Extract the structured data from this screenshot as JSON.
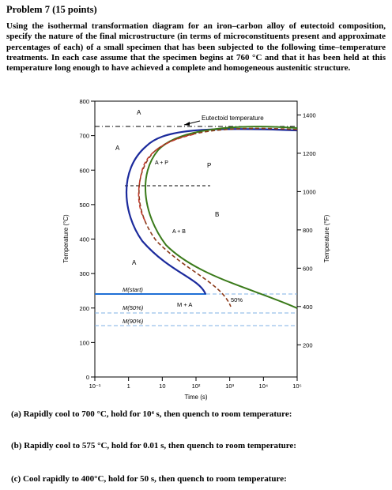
{
  "problem": {
    "title": "Problem 7 (15 points)",
    "statement": "Using the isothermal transformation diagram for an iron–carbon alloy of eutectoid composition, specify the nature of the final microstructure (in terms of microconstituents present and approximate percentages of each) of a small specimen that has been subjected to the following time–temperature treatments. In each case assume that the specimen begins at 760 °C and that it has been held at this temperature long enough to have achieved a complete and homogeneous austenitic structure."
  },
  "chart_data": {
    "type": "line",
    "xlabel": "Time (s)",
    "ylabel_left": "Temperature (°C)",
    "ylabel_right": "Temperature (°F)",
    "x_scale": "log",
    "xlim": [
      0.1,
      100000
    ],
    "ylim": [
      0,
      800
    ],
    "x_ticks": [
      "10⁻¹",
      "1",
      "10",
      "10²",
      "10³",
      "10⁴",
      "10⁵"
    ],
    "y_ticks_left": [
      "0",
      "100",
      "200",
      "300",
      "400",
      "500",
      "600",
      "700",
      "800"
    ],
    "y_ticks_right": [
      "200",
      "400",
      "600",
      "800",
      "1000",
      "1200",
      "1400"
    ],
    "eutectoid_temperature_c": 727,
    "martensite_lines_c": {
      "start": 220,
      "50%": 165,
      "90%": 130
    },
    "series": [
      {
        "name": "",
        "color": "#1b2a9c",
        "x": [
          100,
          10,
          3,
          1.6,
          1.5,
          2.0,
          3.5,
          8,
          20,
          60,
          100
        ],
        "y": [
          700,
          700,
          640,
          580,
          540,
          480,
          420,
          360,
          300,
          240,
          220
        ]
      },
      {
        "name": "",
        "color": "#3a7a1a",
        "x": [
          2000,
          80,
          15,
          6,
          4,
          5,
          10,
          40,
          200,
          2000,
          20000,
          90000
        ],
        "y": [
          710,
          705,
          650,
          590,
          540,
          470,
          410,
          350,
          300,
          250,
          210,
          190
        ]
      }
    ],
    "annotations": [
      "Eutectoid temperature",
      "A",
      "A",
      "P",
      "B",
      "A",
      "A + P",
      "A + B",
      "M(start)",
      "M + A",
      "50%",
      "M(50%)",
      "M(90%)"
    ]
  },
  "questions": [
    "(a) Rapidly cool to 700 °C, hold for 10⁴ s, then quench to room temperature:",
    "(b) Rapidly cool to 575 °C, hold for 0.01 s, then quench to room temperature:",
    "(c) Cool rapidly to 400°C, hold for 50 s, then quench to room temperature:"
  ]
}
